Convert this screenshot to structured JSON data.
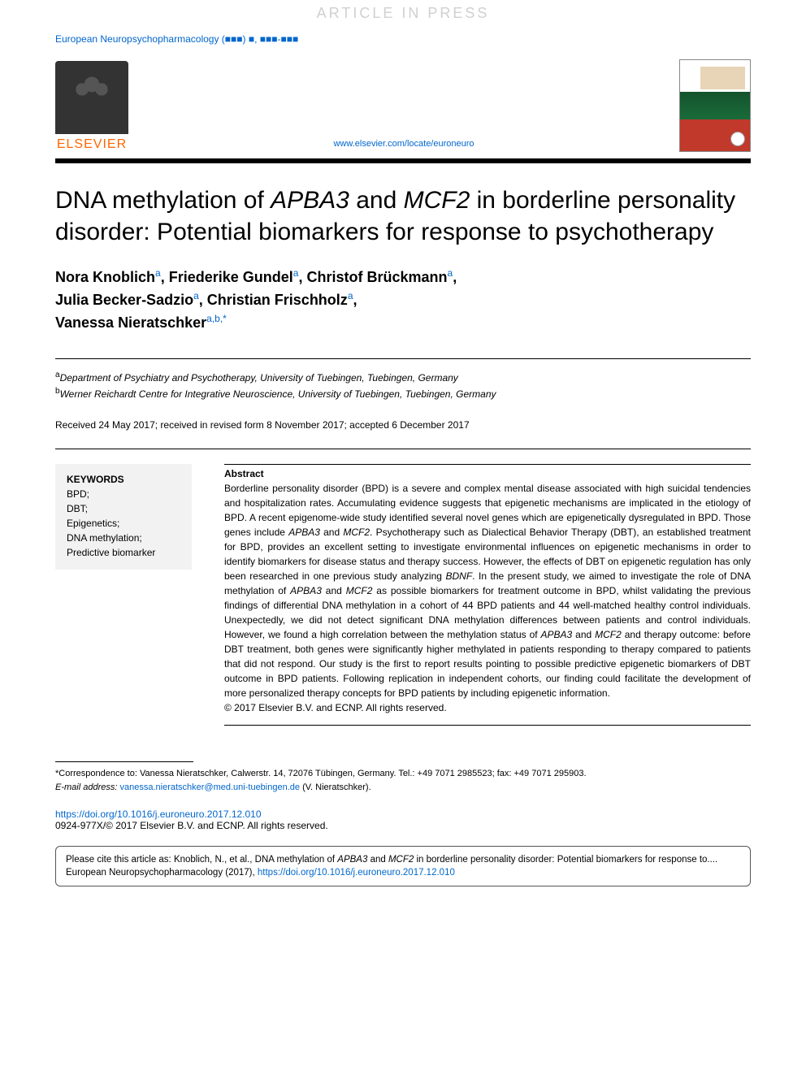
{
  "watermark": "ARTICLE IN PRESS",
  "header": {
    "journal_meta": "European Neuropsychopharmacology (■■■) ■, ■■■-■■■",
    "publisher_name": "ELSEVIER",
    "journal_url": "www.elsevier.com/locate/euroneuro",
    "journal_cover_title": "European Neuropsychopharmacology"
  },
  "article": {
    "title_pre": "DNA methylation of ",
    "title_gene1": "APBA3",
    "title_mid": " and ",
    "title_gene2": "MCF2",
    "title_post": " in borderline personality disorder: Potential biomarkers for response to psychotherapy",
    "authors_html": "Nora Knoblich|a|, Friederike Gundel|a|, Christof Brückmann|a|, Julia Becker-Sadzio|a|, Christian Frischholz|a|, Vanessa Nieratschker|a,b,*",
    "authors": [
      {
        "name": "Nora Knoblich",
        "sup": "a"
      },
      {
        "name": "Friederike Gundel",
        "sup": "a"
      },
      {
        "name": "Christof Brückmann",
        "sup": "a"
      },
      {
        "name": "Julia Becker-Sadzio",
        "sup": "a"
      },
      {
        "name": "Christian Frischholz",
        "sup": "a"
      },
      {
        "name": "Vanessa Nieratschker",
        "sup": "a,b,*"
      }
    ],
    "affiliations": [
      {
        "sup": "a",
        "text": "Department of Psychiatry and Psychotherapy, University of Tuebingen, Tuebingen, Germany"
      },
      {
        "sup": "b",
        "text": "Werner Reichardt Centre for Integrative Neuroscience, University of Tuebingen, Tuebingen, Germany"
      }
    ],
    "dates": "Received 24 May 2017; received in revised form 8 November 2017; accepted 6 December 2017"
  },
  "keywords": {
    "heading": "KEYWORDS",
    "items": [
      "BPD;",
      "DBT;",
      "Epigenetics;",
      "DNA methylation;",
      "Predictive biomarker"
    ]
  },
  "abstract": {
    "heading": "Abstract",
    "text": "Borderline personality disorder (BPD) is a severe and complex mental disease associated with high suicidal tendencies and hospitalization rates. Accumulating evidence suggests that epigenetic mechanisms are implicated in the etiology of BPD. A recent epigenome-wide study identified several novel genes which are epigenetically dysregulated in BPD. Those genes include APBA3 and MCF2. Psychotherapy such as Dialectical Behavior Therapy (DBT), an established treatment for BPD, provides an excellent setting to investigate environmental influences on epigenetic mechanisms in order to identify biomarkers for disease status and therapy success. However, the effects of DBT on epigenetic regulation has only been researched in one previous study analyzing BDNF. In the present study, we aimed to investigate the role of DNA methylation of APBA3 and MCF2 as possible biomarkers for treatment outcome in BPD, whilst validating the previous findings of differential DNA methylation in a cohort of 44 BPD patients and 44 well-matched healthy control individuals. Unexpectedly, we did not detect significant DNA methylation differences between patients and control individuals. However, we found a high correlation between the methylation status of APBA3 and MCF2 and therapy outcome: before DBT treatment, both genes were significantly higher methylated in patients responding to therapy compared to patients that did not respond. Our study is the first to report results pointing to possible predictive epigenetic biomarkers of DBT outcome in BPD patients. Following replication in independent cohorts, our finding could facilitate the development of more personalized therapy concepts for BPD patients by including epigenetic information.",
    "copyright": "© 2017 Elsevier B.V. and ECNP. All rights reserved."
  },
  "footer": {
    "correspondence_label": "*Correspondence to:",
    "correspondence_text": " Vanessa Nieratschker, Calwerstr. 14, 72076 Tübingen, Germany. Tel.: +49 7071 2985523; fax: +49 7071 295903.",
    "email_label": "E-mail address: ",
    "email": "vanessa.nieratschker@med.uni-tuebingen.de",
    "email_suffix": " (V. Nieratschker).",
    "doi": "https://doi.org/10.1016/j.euroneuro.2017.12.010",
    "issn_copyright": "0924-977X/© 2017 Elsevier B.V. and ECNP. All rights reserved.",
    "citation_pre": "Please cite this article as: Knoblich, N., et al., DNA methylation of ",
    "citation_gene1": "APBA3",
    "citation_mid": " and ",
    "citation_gene2": "MCF2",
    "citation_post": " in borderline personality disorder: Potential biomarkers for response to.... European Neuropsychopharmacology (2017), ",
    "citation_doi": "https://doi.org/10.1016/j.euroneuro.2017.12.010"
  },
  "colors": {
    "link": "#0066cc",
    "elsevier_orange": "#ff6600",
    "keywords_bg": "#f2f2f2",
    "text": "#000000",
    "watermark": "#d0d0d0"
  },
  "typography": {
    "title_fontsize": 30,
    "authors_fontsize": 18,
    "body_fontsize": 12,
    "footer_fontsize": 11
  }
}
